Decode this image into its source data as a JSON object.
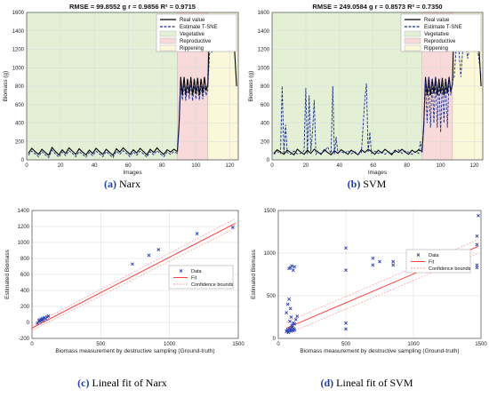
{
  "colors": {
    "real": "#000000",
    "estimate": "#1a2f8f",
    "vegetative": "#e3f0d6",
    "reproductive": "#f8dada",
    "ripening": "#fbf8da",
    "data_marker": "#2a3fb0",
    "fit": "#ff2a2a",
    "bounds": "#ff9a9a"
  },
  "panels": {
    "a": {
      "caption_tag": "(a)",
      "caption_text": "Narx"
    },
    "b": {
      "caption_tag": "(b)",
      "caption_text": "SVM"
    },
    "c": {
      "caption_tag": "(c)",
      "caption_text": "Lineal fit of Narx"
    },
    "d": {
      "caption_tag": "(d)",
      "caption_text": "Lineal fit of SVM"
    }
  },
  "chart_data": [
    {
      "id": "a",
      "type": "line",
      "title": "RMSE = 99.8552 g r = 0.9856 R² = 0.9715",
      "xlabel": "Images",
      "ylabel": "Biomass (g)",
      "xlim": [
        0,
        125
      ],
      "ylim": [
        0,
        1600
      ],
      "xticks": [
        0,
        20,
        40,
        60,
        80,
        100,
        120
      ],
      "yticks": [
        0,
        200,
        400,
        600,
        800,
        1000,
        1200,
        1400,
        1600
      ],
      "grid": true,
      "legend_position": "top-right",
      "phases": [
        {
          "name": "Vegetative",
          "x": [
            0,
            89
          ]
        },
        {
          "name": "Reproductive",
          "x": [
            89,
            107
          ]
        },
        {
          "name": "Rippening",
          "x": [
            107,
            125
          ]
        }
      ],
      "series": [
        {
          "name": "Real value",
          "x": [
            1,
            3,
            5,
            7,
            9,
            11,
            13,
            15,
            17,
            19,
            21,
            23,
            25,
            27,
            29,
            31,
            33,
            35,
            37,
            39,
            41,
            43,
            45,
            47,
            49,
            51,
            53,
            55,
            57,
            59,
            61,
            63,
            65,
            67,
            69,
            71,
            73,
            75,
            77,
            79,
            81,
            83,
            85,
            87,
            89,
            90,
            91,
            92,
            93,
            94,
            95,
            96,
            97,
            98,
            99,
            100,
            101,
            102,
            103,
            104,
            105,
            106,
            107,
            108,
            110,
            112,
            114,
            116,
            118,
            120,
            122,
            124
          ],
          "y": [
            70,
            125,
            90,
            60,
            115,
            80,
            50,
            135,
            90,
            55,
            110,
            70,
            130,
            95,
            60,
            120,
            85,
            55,
            105,
            70,
            125,
            90,
            60,
            115,
            80,
            50,
            120,
            85,
            130,
            95,
            60,
            110,
            75,
            125,
            90,
            55,
            115,
            80,
            130,
            90,
            60,
            110,
            85,
            115,
            90,
            380,
            900,
            700,
            900,
            700,
            880,
            720,
            900,
            700,
            880,
            720,
            890,
            700,
            880,
            720,
            900,
            750,
            820,
            1460,
            1460,
            1460,
            1200,
            1460,
            1460,
            1460,
            1460,
            800
          ]
        },
        {
          "name": "Estimate T-SNE",
          "x": [
            1,
            3,
            5,
            7,
            9,
            11,
            13,
            15,
            17,
            19,
            21,
            23,
            25,
            27,
            29,
            31,
            33,
            35,
            37,
            39,
            41,
            43,
            45,
            47,
            49,
            51,
            53,
            55,
            57,
            59,
            61,
            63,
            65,
            67,
            69,
            71,
            73,
            75,
            77,
            79,
            81,
            83,
            85,
            87,
            89,
            90,
            91,
            92,
            93,
            94,
            95,
            96,
            97,
            98,
            99,
            100,
            101,
            102,
            103,
            104,
            105,
            106,
            107,
            108,
            110,
            112,
            114,
            116,
            118,
            120,
            122,
            124
          ],
          "y": [
            50,
            95,
            65,
            35,
            90,
            55,
            25,
            105,
            65,
            30,
            85,
            45,
            100,
            70,
            35,
            90,
            60,
            30,
            80,
            45,
            95,
            65,
            35,
            90,
            55,
            25,
            95,
            60,
            100,
            70,
            35,
            85,
            50,
            95,
            65,
            30,
            90,
            55,
            100,
            65,
            35,
            85,
            60,
            90,
            70,
            330,
            800,
            650,
            820,
            640,
            800,
            660,
            820,
            640,
            800,
            660,
            800,
            650,
            800,
            660,
            800,
            700,
            760,
            1150,
            1180,
            1190,
            1180,
            1190,
            1180,
            1190,
            1180,
            1180
          ]
        }
      ]
    },
    {
      "id": "b",
      "type": "line",
      "title": "RMSE = 249.0584 g r = 0.8573 R² = 0.7350",
      "xlabel": "Images",
      "ylabel": "Biomass (g)",
      "xlim": [
        0,
        125
      ],
      "ylim": [
        0,
        1600
      ],
      "xticks": [
        0,
        20,
        40,
        60,
        80,
        100,
        120
      ],
      "yticks": [
        0,
        200,
        400,
        600,
        800,
        1000,
        1200,
        1400,
        1600
      ],
      "grid": true,
      "legend_position": "top-right",
      "phases": [
        {
          "name": "Vegetative",
          "x": [
            0,
            89
          ]
        },
        {
          "name": "Reproductive",
          "x": [
            89,
            107
          ]
        },
        {
          "name": "Rippening",
          "x": [
            107,
            125
          ]
        }
      ],
      "series": [
        {
          "name": "Real value",
          "x": [
            1,
            3,
            5,
            7,
            9,
            11,
            13,
            15,
            17,
            19,
            21,
            23,
            25,
            27,
            29,
            31,
            33,
            35,
            37,
            39,
            41,
            43,
            45,
            47,
            49,
            51,
            53,
            55,
            57,
            59,
            61,
            63,
            65,
            67,
            69,
            71,
            73,
            75,
            77,
            79,
            81,
            83,
            85,
            87,
            89,
            90,
            91,
            92,
            93,
            94,
            95,
            96,
            97,
            98,
            99,
            100,
            101,
            102,
            103,
            104,
            105,
            106,
            107,
            108,
            110,
            112,
            114,
            116,
            118,
            120,
            122,
            124
          ],
          "y": [
            70,
            110,
            85,
            60,
            105,
            80,
            55,
            115,
            85,
            60,
            105,
            70,
            115,
            90,
            60,
            110,
            80,
            55,
            100,
            70,
            110,
            85,
            60,
            105,
            80,
            55,
            110,
            80,
            115,
            90,
            60,
            105,
            75,
            115,
            85,
            55,
            105,
            80,
            115,
            85,
            60,
            105,
            80,
            110,
            90,
            380,
            900,
            700,
            900,
            700,
            880,
            720,
            900,
            700,
            880,
            720,
            890,
            700,
            880,
            720,
            900,
            750,
            820,
            1460,
            1460,
            1460,
            1200,
            1460,
            1460,
            1460,
            1460,
            800
          ]
        },
        {
          "name": "Estimate T-SNE",
          "x": [
            1,
            3,
            5,
            6,
            7,
            8,
            9,
            11,
            13,
            15,
            17,
            19,
            20,
            21,
            22,
            23,
            24,
            25,
            26,
            27,
            29,
            31,
            33,
            35,
            36,
            37,
            38,
            39,
            41,
            43,
            45,
            47,
            49,
            51,
            53,
            55,
            56,
            57,
            58,
            59,
            61,
            63,
            65,
            67,
            69,
            71,
            73,
            75,
            77,
            79,
            81,
            83,
            85,
            87,
            88,
            89,
            90,
            91,
            92,
            93,
            94,
            95,
            96,
            97,
            98,
            99,
            100,
            101,
            102,
            103,
            104,
            105,
            106,
            107,
            108,
            110,
            112,
            114,
            116,
            118,
            120,
            122,
            124
          ],
          "y": [
            60,
            90,
            70,
            800,
            60,
            380,
            80,
            60,
            95,
            65,
            70,
            100,
            780,
            60,
            700,
            90,
            300,
            650,
            60,
            80,
            70,
            95,
            140,
            70,
            800,
            60,
            250,
            80,
            90,
            70,
            100,
            65,
            90,
            60,
            80,
            650,
            830,
            80,
            300,
            70,
            95,
            70,
            85,
            60,
            90,
            70,
            85,
            110,
            70,
            95,
            85,
            60,
            90,
            70,
            200,
            80,
            350,
            850,
            400,
            900,
            350,
            880,
            400,
            900,
            350,
            880,
            300,
            850,
            400,
            880,
            350,
            880,
            700,
            850,
            900,
            1400,
            900,
            1430,
            1100,
            1300,
            1420,
            1200,
            900
          ]
        }
      ]
    },
    {
      "id": "c",
      "type": "scatter",
      "xlabel": "Biomass measurement by destructive sampling (Ground-truth)",
      "ylabel": "Estimated Biomass",
      "xlim": [
        0,
        1500
      ],
      "ylim": [
        -200,
        1400
      ],
      "xticks": [
        0,
        500,
        1000,
        1500
      ],
      "yticks": [
        -200,
        0,
        200,
        400,
        600,
        800,
        1000,
        1200,
        1400
      ],
      "grid": true,
      "legend_position": "right",
      "legend": [
        "Data",
        "Fit",
        "Confidence bounds"
      ],
      "data": {
        "x": [
          40,
          50,
          55,
          60,
          65,
          70,
          75,
          80,
          90,
          100,
          110,
          120,
          730,
          850,
          920,
          1200,
          1460
        ],
        "y": [
          -10,
          20,
          30,
          10,
          40,
          25,
          50,
          30,
          60,
          45,
          70,
          80,
          730,
          840,
          910,
          1110,
          1190
        ]
      },
      "fit": {
        "x": [
          0,
          1480
        ],
        "y": [
          -70,
          1240
        ]
      },
      "bounds_upper": {
        "x": [
          0,
          1480
        ],
        "y": [
          -40,
          1300
        ]
      },
      "bounds_lower": {
        "x": [
          0,
          1480
        ],
        "y": [
          -100,
          1180
        ]
      }
    },
    {
      "id": "d",
      "type": "scatter",
      "xlabel": "Biomass measurement by destructive sampling (Ground-truth)",
      "ylabel": "Estimated Biomass",
      "xlim": [
        0,
        1500
      ],
      "ylim": [
        0,
        1500
      ],
      "xticks": [
        0,
        500,
        1000,
        1500
      ],
      "yticks": [
        0,
        500,
        1000,
        1500
      ],
      "grid": true,
      "legend_position": "right",
      "legend": [
        "Data",
        "Fit",
        "Confidence bounds"
      ],
      "data": {
        "x": [
          60,
          65,
          70,
          75,
          80,
          85,
          90,
          95,
          100,
          105,
          110,
          115,
          120,
          80,
          90,
          100,
          110,
          120,
          60,
          70,
          80,
          85,
          90,
          95,
          100,
          110,
          120,
          130,
          140,
          500,
          500,
          500,
          500,
          700,
          700,
          750,
          850,
          850,
          1470,
          1470,
          1470,
          1470,
          1480
        ],
        "y": [
          80,
          90,
          100,
          70,
          110,
          95,
          120,
          85,
          100,
          130,
          90,
          115,
          100,
          820,
          830,
          850,
          800,
          840,
          300,
          400,
          460,
          200,
          350,
          250,
          150,
          180,
          170,
          220,
          260,
          110,
          180,
          800,
          1060,
          860,
          940,
          900,
          860,
          900,
          830,
          860,
          1100,
          1200,
          1440
        ]
      },
      "fit": {
        "x": [
          60,
          1480
        ],
        "y": [
          120,
          1080
        ]
      },
      "bounds_upper": {
        "x": [
          60,
          1480
        ],
        "y": [
          190,
          1160
        ]
      },
      "bounds_lower": {
        "x": [
          60,
          1480
        ],
        "y": [
          50,
          1000
        ]
      }
    }
  ]
}
